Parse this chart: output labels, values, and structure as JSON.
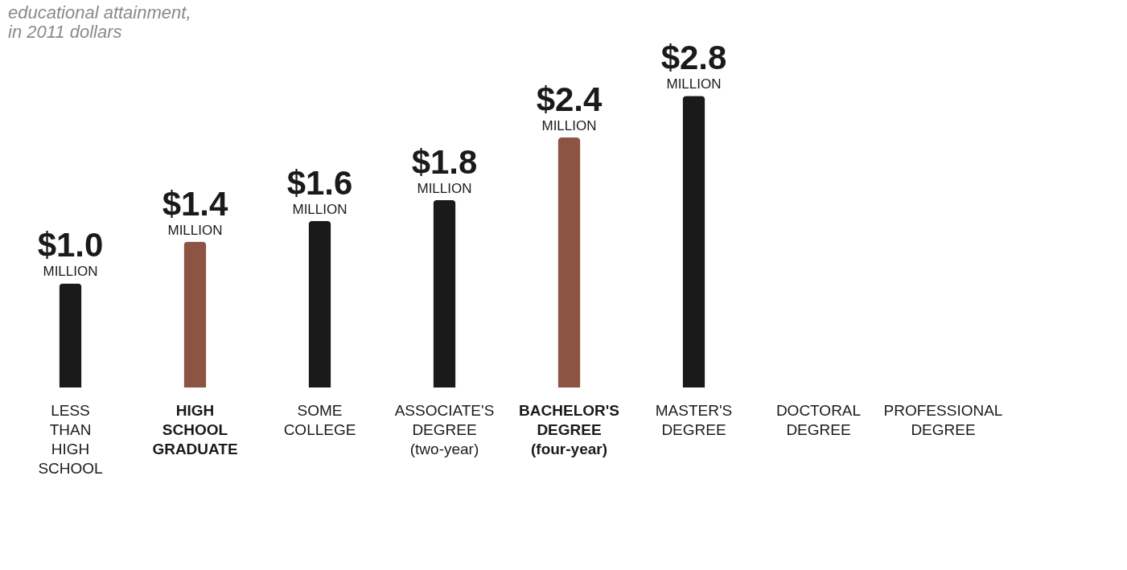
{
  "chart_data": {
    "type": "bar",
    "subtitle": "educational attainment,\nin 2011 dollars",
    "categories": [
      "LESS\nTHAN\nHIGH\nSCHOOL",
      "HIGH\nSCHOOL\nGRADUATE",
      "SOME\nCOLLEGE",
      "ASSOCIATE'S\nDEGREE\n(two-year)",
      "BACHELOR'S\nDEGREE\n(four-year)",
      "MASTER'S\nDEGREE",
      "DOCTORAL\nDEGREE",
      "PROFESSIONAL\nDEGREE"
    ],
    "values": [
      1.0,
      1.4,
      1.6,
      1.8,
      2.4,
      2.8,
      null,
      null
    ],
    "value_labels": [
      "$1.0",
      "$1.4",
      "$1.6",
      "$1.8",
      "$2.4",
      "$2.8",
      null,
      null
    ],
    "annotations": [
      {
        "text": "MILLION",
        "x": "LESS\nTHAN\nHIGH\nSCHOOL",
        "y": 1.0
      },
      {
        "text": "MILLION",
        "x": "HIGH\nSCHOOL\nGRADUATE",
        "y": 1.4
      },
      {
        "text": "MILLION",
        "x": "SOME\nCOLLEGE",
        "y": 1.6
      },
      {
        "text": "MILLION",
        "x": "ASSOCIATE'S\nDEGREE\n(two-year)",
        "y": 1.8
      },
      {
        "text": "MILLION",
        "x": "BACHELOR'S\nDEGREE\n(four-year)",
        "y": 2.4
      },
      {
        "text": "MILLION",
        "x": "MASTER'S\nDEGREE",
        "y": 2.8
      }
    ],
    "colors": [
      "#1a1a1a",
      "#8b5443",
      "#1a1a1a",
      "#1a1a1a",
      "#8b5443",
      "#1a1a1a",
      "#1a1a1a",
      "#1a1a1a"
    ]
  }
}
